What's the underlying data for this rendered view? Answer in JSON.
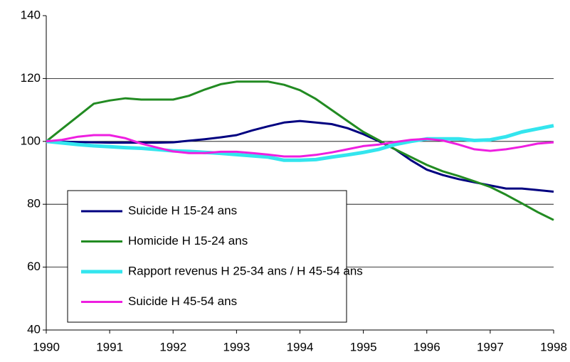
{
  "chart_data": {
    "type": "line",
    "x": [
      1990,
      1990.25,
      1990.5,
      1990.75,
      1991,
      1991.25,
      1991.5,
      1991.75,
      1992,
      1992.25,
      1992.5,
      1992.75,
      1993,
      1993.25,
      1993.5,
      1993.75,
      1994,
      1994.25,
      1994.5,
      1994.75,
      1995,
      1995.25,
      1995.5,
      1995.75,
      1996,
      1996.25,
      1996.5,
      1996.75,
      1997,
      1997.25,
      1997.5,
      1997.75,
      1998
    ],
    "series": [
      {
        "name": "Suicide H 15-24 ans",
        "color": "#000080",
        "values": [
          100,
          99.9,
          99.8,
          99.7,
          99.6,
          99.6,
          99.6,
          99.6,
          99.7,
          100.2,
          100.7,
          101.3,
          102,
          103.5,
          104.8,
          106,
          106.5,
          106,
          105.5,
          104.2,
          102.3,
          100,
          97.5,
          94,
          91,
          89.3,
          88,
          87,
          86,
          85,
          85,
          84.5,
          84
        ]
      },
      {
        "name": "Homicide H 15-24 ans",
        "color": "#228B22",
        "values": [
          100,
          104,
          108,
          112,
          113,
          113.7,
          113.3,
          113.3,
          113.3,
          114.5,
          116.5,
          118.2,
          119,
          119,
          119,
          118,
          116.3,
          113.5,
          110,
          106.5,
          103,
          100.3,
          97.5,
          95,
          92.5,
          90.5,
          89,
          87.3,
          85.5,
          83,
          80.3,
          77.5,
          75
        ]
      },
      {
        "name": "Rapport revenus H 25-34 ans / H 45-54 ans",
        "color": "#33E5EE",
        "values": [
          100,
          99.5,
          99,
          98.6,
          98.3,
          98,
          97.8,
          97.4,
          97,
          96.8,
          96.5,
          96.2,
          95.8,
          95.4,
          95,
          94,
          94,
          94.2,
          95,
          95.7,
          96.5,
          97.5,
          99,
          100,
          100.8,
          100.8,
          100.8,
          100.3,
          100.5,
          101.5,
          103,
          104,
          105
        ]
      },
      {
        "name": "Suicide H 45-54 ans",
        "color": "#EE1FE0",
        "values": [
          100,
          100.5,
          101.5,
          102,
          102,
          101,
          99.3,
          98,
          96.8,
          96.3,
          96.3,
          96.7,
          96.7,
          96.3,
          95.8,
          95.2,
          95.2,
          95.7,
          96.5,
          97.5,
          98.5,
          99,
          99.8,
          100.5,
          100.8,
          100.3,
          99,
          97.5,
          97,
          97.5,
          98.3,
          99.3,
          99.7
        ]
      }
    ],
    "xlim": [
      1990,
      1998
    ],
    "xticks": [
      1990,
      1991,
      1992,
      1993,
      1994,
      1995,
      1996,
      1997,
      1998
    ],
    "ylim": [
      40,
      140
    ],
    "yticks": [
      40,
      60,
      80,
      100,
      120,
      140
    ],
    "grid": true
  }
}
